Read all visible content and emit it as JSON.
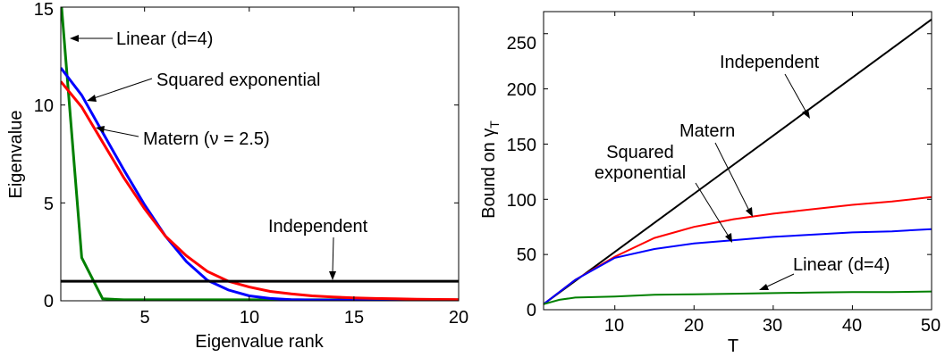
{
  "chart_data": [
    {
      "type": "line",
      "xlabel": "Eigenvalue rank",
      "ylabel": "Eigenvalue",
      "xlim": [
        1,
        20
      ],
      "ylim": [
        0,
        15
      ],
      "xticks": [
        5,
        10,
        15,
        20
      ],
      "yticks": [
        0,
        5,
        10,
        15
      ],
      "grid": false,
      "legend": "none",
      "series": [
        {
          "name": "Linear (d=4)",
          "color": "#008000",
          "x": [
            1,
            2,
            3,
            4,
            5,
            6,
            7,
            8,
            9,
            10,
            11,
            12,
            13,
            14,
            15,
            16,
            17,
            18,
            19,
            20
          ],
          "values": [
            15.5,
            2.2,
            0.1,
            0.05,
            0.05,
            0.05,
            0.05,
            0.05,
            0.05,
            0.05,
            0.05,
            0.05,
            0.05,
            0.05,
            0.05,
            0.05,
            0.05,
            0.05,
            0.05,
            0.05
          ]
        },
        {
          "name": "Squared exponential",
          "color": "#0000ff",
          "x": [
            1,
            2,
            3,
            4,
            5,
            6,
            7,
            8,
            9,
            10,
            11,
            12,
            13,
            14,
            15,
            16,
            17,
            18,
            19,
            20
          ],
          "values": [
            11.9,
            10.5,
            8.6,
            6.7,
            4.9,
            3.3,
            2.0,
            1.05,
            0.55,
            0.25,
            0.12,
            0.06,
            0.04,
            0.03,
            0.03,
            0.03,
            0.03,
            0.03,
            0.03,
            0.03
          ]
        },
        {
          "name": "Matern (ν = 2.5)",
          "color": "#ff0000",
          "x": [
            1,
            2,
            3,
            4,
            5,
            6,
            7,
            8,
            9,
            10,
            11,
            12,
            13,
            14,
            15,
            16,
            17,
            18,
            19,
            20
          ],
          "values": [
            11.2,
            9.9,
            8.1,
            6.3,
            4.7,
            3.3,
            2.3,
            1.5,
            1.0,
            0.7,
            0.48,
            0.35,
            0.25,
            0.19,
            0.15,
            0.12,
            0.1,
            0.08,
            0.07,
            0.06
          ]
        },
        {
          "name": "Independent",
          "color": "#000000",
          "x": [
            1,
            20
          ],
          "values": [
            1.0,
            1.0
          ]
        }
      ],
      "annotations": [
        {
          "text": "Linear (d=4)",
          "target_series": "Linear (d=4)",
          "target_x": 1.3,
          "target_y": 13.6
        },
        {
          "text": "Squared exponential",
          "target_series": "Squared exponential",
          "target_x": 2.3,
          "target_y": 10.2
        },
        {
          "text": "Matern (ν = 2.5)",
          "target_series": "Matern (ν = 2.5)",
          "target_x": 2.6,
          "target_y": 8.8
        },
        {
          "text": "Independent",
          "target_series": "Independent",
          "target_x": 14.0,
          "target_y": 1.0
        }
      ]
    },
    {
      "type": "line",
      "xlabel": "T",
      "ylabel": "Bound on γ",
      "ylabel_subscript": "T",
      "xlim": [
        1,
        50
      ],
      "ylim": [
        0,
        270
      ],
      "xticks": [
        10,
        20,
        30,
        40,
        50
      ],
      "yticks": [
        0,
        50,
        100,
        150,
        200,
        250
      ],
      "grid": false,
      "legend": "none",
      "series": [
        {
          "name": "Independent",
          "color": "#000000",
          "x": [
            1,
            50
          ],
          "values": [
            5,
            263
          ]
        },
        {
          "name": "Matern",
          "color": "#ff0000",
          "x": [
            1,
            5,
            10,
            15,
            20,
            25,
            30,
            35,
            40,
            45,
            50
          ],
          "values": [
            5,
            27,
            48,
            65,
            75,
            82,
            87,
            91,
            95,
            98,
            102
          ]
        },
        {
          "name": "Squared exponential",
          "color": "#0000ff",
          "x": [
            1,
            5,
            10,
            15,
            20,
            25,
            30,
            35,
            40,
            45,
            50
          ],
          "values": [
            5,
            27,
            47,
            55,
            60,
            63,
            66,
            68,
            70,
            71,
            73
          ]
        },
        {
          "name": "Linear (d=4)",
          "color": "#008000",
          "x": [
            1,
            3,
            5,
            10,
            15,
            20,
            25,
            30,
            35,
            40,
            45,
            50
          ],
          "values": [
            5,
            9,
            11,
            12,
            13.5,
            14,
            14.5,
            15,
            15.5,
            16,
            16,
            16.5
          ]
        }
      ],
      "annotations": [
        {
          "text": "Independent",
          "target_series": "Independent",
          "target_x": 23.5,
          "target_y": 127
        },
        {
          "text": "Matern",
          "target_series": "Matern",
          "target_x": 28.5,
          "target_y": 89
        },
        {
          "text": "Squared\nexponential",
          "target_series": "Squared exponential",
          "target_x": 26.5,
          "target_y": 65
        },
        {
          "text": "Linear (d=4)",
          "target_series": "Linear (d=4)",
          "target_x": 30.5,
          "target_y": 15
        }
      ]
    }
  ]
}
